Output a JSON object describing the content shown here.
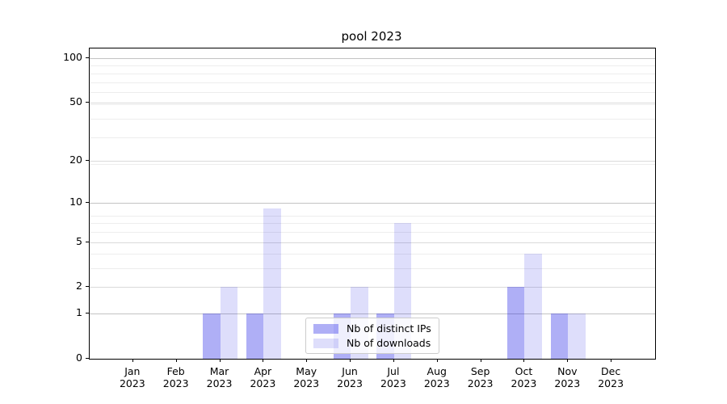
{
  "title": "pool 2023",
  "chart_data": {
    "type": "bar",
    "title": "pool 2023",
    "categories": [
      "Jan 2023",
      "Feb 2023",
      "Mar 2023",
      "Apr 2023",
      "May 2023",
      "Jun 2023",
      "Jul 2023",
      "Aug 2023",
      "Sep 2023",
      "Oct 2023",
      "Nov 2023",
      "Dec 2023"
    ],
    "series": [
      {
        "name": "Nb of distinct IPs",
        "color": "rgba(20,20,230,0.34)",
        "solid_color": "#aaaaf0",
        "values": [
          0,
          0,
          1,
          1,
          0,
          1,
          1,
          0,
          0,
          2,
          1,
          0
        ]
      },
      {
        "name": "Nb of downloads",
        "color": "rgba(20,20,230,0.14)",
        "solid_color": "#dcdcfa",
        "values": [
          0,
          0,
          2,
          9,
          0,
          2,
          7,
          0,
          0,
          4,
          1,
          0
        ]
      }
    ],
    "yscale": "log(1+x)",
    "yticks": [
      0,
      1,
      2,
      5,
      10,
      20,
      50,
      100
    ],
    "ylim": [
      0,
      116
    ],
    "xlabel": "",
    "ylabel": "",
    "grid": "both",
    "legend_position": "lower center"
  }
}
